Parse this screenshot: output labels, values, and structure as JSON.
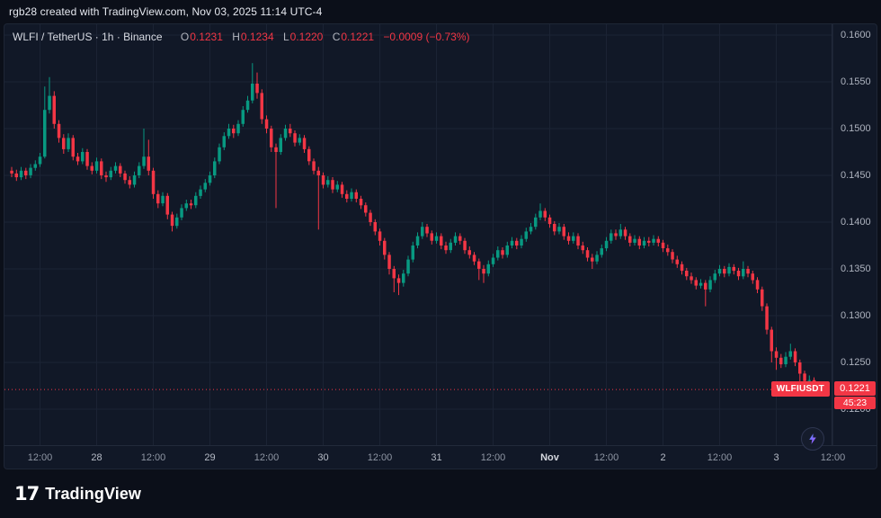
{
  "attribution": {
    "text": "rgb28 created with TradingView.com, Nov 03, 2025 11:14 UTC-4"
  },
  "legend": {
    "symbol_title": "WLFI / TetherUS · 1h · Binance",
    "ohlc": {
      "o_label": "O",
      "o_value": "0.1231",
      "h_label": "H",
      "h_value": "0.1234",
      "l_label": "L",
      "l_value": "0.1220",
      "c_label": "C",
      "c_value": "0.1221",
      "change": "−0.0009 (−0.73%)"
    }
  },
  "price_line": {
    "symbol_flag": "WLFIUSDT",
    "price_label": "0.1221",
    "countdown": "45:23"
  },
  "footer": {
    "brand": "TradingView",
    "logo_glyph": "17"
  },
  "icons": {
    "boost": "lightning-bolt"
  },
  "colors": {
    "up": "#089981",
    "down": "#f23645",
    "grid": "#1b2334",
    "axis_text": "#aeb3bf",
    "panel_bg": "#111827"
  },
  "chart_data": {
    "type": "candlestick",
    "title": "WLFI / TetherUS · 1h · Binance",
    "symbol": "WLFIUSDT",
    "exchange": "Binance",
    "interval": "1h",
    "last_price": 0.1221,
    "change": -0.0009,
    "change_pct": -0.73,
    "price_axis": {
      "min": 0.11615,
      "max": 0.16115,
      "ticks": [
        {
          "label": "0.1600",
          "value": 0.16
        },
        {
          "label": "0.1550",
          "value": 0.155
        },
        {
          "label": "0.1500",
          "value": 0.15
        },
        {
          "label": "0.1450",
          "value": 0.145
        },
        {
          "label": "0.1400",
          "value": 0.14
        },
        {
          "label": "0.1350",
          "value": 0.135
        },
        {
          "label": "0.1300",
          "value": 0.13
        },
        {
          "label": "0.1250",
          "value": 0.125
        },
        {
          "label": "0.1200",
          "value": 0.12
        }
      ]
    },
    "time_axis": {
      "ticks": [
        {
          "label": "12:00",
          "index": 6
        },
        {
          "label": "28",
          "index": 18,
          "kind": "day"
        },
        {
          "label": "12:00",
          "index": 30
        },
        {
          "label": "29",
          "index": 42,
          "kind": "day"
        },
        {
          "label": "12:00",
          "index": 54
        },
        {
          "label": "30",
          "index": 66,
          "kind": "day"
        },
        {
          "label": "12:00",
          "index": 78
        },
        {
          "label": "31",
          "index": 90,
          "kind": "day"
        },
        {
          "label": "12:00",
          "index": 102
        },
        {
          "label": "Nov",
          "index": 114,
          "kind": "em"
        },
        {
          "label": "12:00",
          "index": 126
        },
        {
          "label": "2",
          "index": 138,
          "kind": "day"
        },
        {
          "label": "12:00",
          "index": 150
        },
        {
          "label": "3",
          "index": 162,
          "kind": "day"
        },
        {
          "label": "12:00",
          "index": 174
        }
      ]
    },
    "candles": [
      [
        0.1455,
        0.1459,
        0.1448,
        0.1452
      ],
      [
        0.1452,
        0.1456,
        0.1444,
        0.1448
      ],
      [
        0.1448,
        0.1459,
        0.1445,
        0.1455
      ],
      [
        0.1455,
        0.1458,
        0.1446,
        0.145
      ],
      [
        0.145,
        0.1462,
        0.1447,
        0.1458
      ],
      [
        0.1458,
        0.1466,
        0.1455,
        0.1462
      ],
      [
        0.1462,
        0.1474,
        0.1459,
        0.147
      ],
      [
        0.147,
        0.1545,
        0.1468,
        0.152
      ],
      [
        0.152,
        0.1555,
        0.1516,
        0.1535
      ],
      [
        0.1535,
        0.154,
        0.15,
        0.1505
      ],
      [
        0.1505,
        0.1509,
        0.1485,
        0.149
      ],
      [
        0.149,
        0.1494,
        0.1473,
        0.1478
      ],
      [
        0.1478,
        0.1495,
        0.1475,
        0.149
      ],
      [
        0.149,
        0.1493,
        0.1466,
        0.147
      ],
      [
        0.147,
        0.1474,
        0.1461,
        0.1465
      ],
      [
        0.1465,
        0.1479,
        0.1462,
        0.1475
      ],
      [
        0.1475,
        0.1478,
        0.1456,
        0.146
      ],
      [
        0.146,
        0.1464,
        0.1451,
        0.1455
      ],
      [
        0.1455,
        0.1469,
        0.1452,
        0.1465
      ],
      [
        0.1465,
        0.1468,
        0.1446,
        0.145
      ],
      [
        0.145,
        0.1454,
        0.1443,
        0.1448
      ],
      [
        0.1448,
        0.1459,
        0.1445,
        0.1455
      ],
      [
        0.1455,
        0.1464,
        0.1452,
        0.146
      ],
      [
        0.146,
        0.1463,
        0.1448,
        0.1452
      ],
      [
        0.1452,
        0.1455,
        0.1441,
        0.1445
      ],
      [
        0.1445,
        0.1449,
        0.1436,
        0.144
      ],
      [
        0.144,
        0.1454,
        0.1437,
        0.145
      ],
      [
        0.145,
        0.1464,
        0.1447,
        0.146
      ],
      [
        0.146,
        0.15,
        0.1457,
        0.147
      ],
      [
        0.147,
        0.1488,
        0.145,
        0.1455
      ],
      [
        0.1455,
        0.1458,
        0.1425,
        0.143
      ],
      [
        0.143,
        0.1434,
        0.1415,
        0.142
      ],
      [
        0.142,
        0.1432,
        0.1417,
        0.1428
      ],
      [
        0.1428,
        0.1431,
        0.1403,
        0.1408
      ],
      [
        0.1408,
        0.1411,
        0.139,
        0.1396
      ],
      [
        0.1396,
        0.1409,
        0.1393,
        0.1405
      ],
      [
        0.1405,
        0.1419,
        0.1402,
        0.1415
      ],
      [
        0.1415,
        0.1424,
        0.1412,
        0.142
      ],
      [
        0.142,
        0.1424,
        0.1414,
        0.1418
      ],
      [
        0.1418,
        0.1432,
        0.1415,
        0.1428
      ],
      [
        0.1428,
        0.1439,
        0.1425,
        0.1435
      ],
      [
        0.1435,
        0.1446,
        0.1432,
        0.1442
      ],
      [
        0.1442,
        0.1454,
        0.1439,
        0.145
      ],
      [
        0.145,
        0.1469,
        0.1447,
        0.1465
      ],
      [
        0.1465,
        0.1484,
        0.1462,
        0.148
      ],
      [
        0.148,
        0.1496,
        0.1477,
        0.1492
      ],
      [
        0.1492,
        0.1505,
        0.1489,
        0.15
      ],
      [
        0.15,
        0.1504,
        0.149,
        0.1495
      ],
      [
        0.1495,
        0.1509,
        0.1492,
        0.1505
      ],
      [
        0.1505,
        0.1524,
        0.1502,
        0.152
      ],
      [
        0.152,
        0.1535,
        0.1517,
        0.153
      ],
      [
        0.153,
        0.157,
        0.1527,
        0.1548
      ],
      [
        0.1548,
        0.156,
        0.1532,
        0.1538
      ],
      [
        0.1538,
        0.1542,
        0.1505,
        0.151
      ],
      [
        0.151,
        0.1514,
        0.1495,
        0.15
      ],
      [
        0.15,
        0.1503,
        0.1475,
        0.148
      ],
      [
        0.148,
        0.1484,
        0.1415,
        0.1475
      ],
      [
        0.1475,
        0.1494,
        0.1472,
        0.149
      ],
      [
        0.149,
        0.1504,
        0.1487,
        0.15
      ],
      [
        0.15,
        0.1505,
        0.1491,
        0.1495
      ],
      [
        0.1495,
        0.1498,
        0.1481,
        0.1485
      ],
      [
        0.1485,
        0.1494,
        0.1482,
        0.149
      ],
      [
        0.149,
        0.1493,
        0.1474,
        0.1478
      ],
      [
        0.1478,
        0.1481,
        0.1461,
        0.1465
      ],
      [
        0.1465,
        0.1468,
        0.1451,
        0.1455
      ],
      [
        0.1455,
        0.1459,
        0.1392,
        0.145
      ],
      [
        0.145,
        0.1453,
        0.1436,
        0.144
      ],
      [
        0.144,
        0.1449,
        0.1437,
        0.1445
      ],
      [
        0.1445,
        0.1448,
        0.1431,
        0.1435
      ],
      [
        0.1435,
        0.1444,
        0.1432,
        0.144
      ],
      [
        0.144,
        0.1443,
        0.1426,
        0.143
      ],
      [
        0.143,
        0.1434,
        0.1421,
        0.1425
      ],
      [
        0.1425,
        0.1436,
        0.1422,
        0.1432
      ],
      [
        0.1432,
        0.1435,
        0.1421,
        0.1425
      ],
      [
        0.1425,
        0.1428,
        0.1414,
        0.1418
      ],
      [
        0.1418,
        0.1421,
        0.1406,
        0.141
      ],
      [
        0.141,
        0.1413,
        0.1396,
        0.14
      ],
      [
        0.14,
        0.1403,
        0.1386,
        0.139
      ],
      [
        0.139,
        0.1393,
        0.1375,
        0.138
      ],
      [
        0.138,
        0.1383,
        0.136,
        0.1365
      ],
      [
        0.1365,
        0.1368,
        0.1344,
        0.135
      ],
      [
        0.135,
        0.1353,
        0.1325,
        0.134
      ],
      [
        0.134,
        0.1344,
        0.1322,
        0.1335
      ],
      [
        0.1335,
        0.1349,
        0.1331,
        0.1345
      ],
      [
        0.1345,
        0.1364,
        0.1342,
        0.136
      ],
      [
        0.136,
        0.1379,
        0.1357,
        0.1375
      ],
      [
        0.1375,
        0.1389,
        0.1372,
        0.1385
      ],
      [
        0.1385,
        0.14,
        0.1382,
        0.1395
      ],
      [
        0.1395,
        0.1398,
        0.1384,
        0.1388
      ],
      [
        0.1388,
        0.1391,
        0.1376,
        0.138
      ],
      [
        0.138,
        0.1389,
        0.1377,
        0.1385
      ],
      [
        0.1385,
        0.1388,
        0.1371,
        0.1375
      ],
      [
        0.1375,
        0.1379,
        0.1366,
        0.137
      ],
      [
        0.137,
        0.1382,
        0.1367,
        0.1378
      ],
      [
        0.1378,
        0.1389,
        0.1375,
        0.1385
      ],
      [
        0.1385,
        0.1388,
        0.1376,
        0.138
      ],
      [
        0.138,
        0.1383,
        0.1366,
        0.137
      ],
      [
        0.137,
        0.1374,
        0.1361,
        0.1365
      ],
      [
        0.1365,
        0.1368,
        0.1354,
        0.1358
      ],
      [
        0.1358,
        0.1361,
        0.1338,
        0.135
      ],
      [
        0.135,
        0.1354,
        0.1335,
        0.1345
      ],
      [
        0.1345,
        0.1359,
        0.1342,
        0.1355
      ],
      [
        0.1355,
        0.1366,
        0.1352,
        0.1362
      ],
      [
        0.1362,
        0.1374,
        0.1359,
        0.137
      ],
      [
        0.137,
        0.1373,
        0.1361,
        0.1365
      ],
      [
        0.1365,
        0.1379,
        0.1362,
        0.1375
      ],
      [
        0.1375,
        0.1384,
        0.1372,
        0.138
      ],
      [
        0.138,
        0.1383,
        0.1371,
        0.1375
      ],
      [
        0.1375,
        0.1386,
        0.1372,
        0.1382
      ],
      [
        0.1382,
        0.1394,
        0.1379,
        0.139
      ],
      [
        0.139,
        0.1399,
        0.1387,
        0.1395
      ],
      [
        0.1395,
        0.1409,
        0.1392,
        0.1405
      ],
      [
        0.1405,
        0.142,
        0.1402,
        0.1412
      ],
      [
        0.1412,
        0.1415,
        0.1401,
        0.1405
      ],
      [
        0.1405,
        0.1408,
        0.1394,
        0.1398
      ],
      [
        0.1398,
        0.1401,
        0.1386,
        0.139
      ],
      [
        0.139,
        0.1399,
        0.1387,
        0.1395
      ],
      [
        0.1395,
        0.1398,
        0.1381,
        0.1385
      ],
      [
        0.1385,
        0.1389,
        0.1376,
        0.138
      ],
      [
        0.138,
        0.1389,
        0.1377,
        0.1385
      ],
      [
        0.1385,
        0.1388,
        0.1371,
        0.1375
      ],
      [
        0.1375,
        0.1379,
        0.1366,
        0.137
      ],
      [
        0.137,
        0.1373,
        0.1358,
        0.1362
      ],
      [
        0.1362,
        0.1366,
        0.135,
        0.1358
      ],
      [
        0.1358,
        0.1369,
        0.1355,
        0.1365
      ],
      [
        0.1365,
        0.1376,
        0.1362,
        0.1372
      ],
      [
        0.1372,
        0.1384,
        0.1369,
        0.138
      ],
      [
        0.138,
        0.1392,
        0.1377,
        0.1388
      ],
      [
        0.1388,
        0.1392,
        0.1381,
        0.1385
      ],
      [
        0.1385,
        0.1398,
        0.1382,
        0.1392
      ],
      [
        0.1392,
        0.1395,
        0.1381,
        0.1385
      ],
      [
        0.1385,
        0.1388,
        0.1374,
        0.1378
      ],
      [
        0.1378,
        0.1386,
        0.1375,
        0.1382
      ],
      [
        0.1382,
        0.1385,
        0.1371,
        0.1375
      ],
      [
        0.1375,
        0.1384,
        0.1372,
        0.138
      ],
      [
        0.138,
        0.1384,
        0.1374,
        0.1378
      ],
      [
        0.1378,
        0.1386,
        0.1375,
        0.1382
      ],
      [
        0.1382,
        0.1385,
        0.1374,
        0.1378
      ],
      [
        0.1378,
        0.1381,
        0.1368,
        0.1372
      ],
      [
        0.1372,
        0.1376,
        0.1364,
        0.1368
      ],
      [
        0.1368,
        0.1371,
        0.1356,
        0.136
      ],
      [
        0.136,
        0.1364,
        0.1351,
        0.1355
      ],
      [
        0.1355,
        0.1358,
        0.1344,
        0.1348
      ],
      [
        0.1348,
        0.1351,
        0.1338,
        0.1342
      ],
      [
        0.1342,
        0.1346,
        0.1334,
        0.1338
      ],
      [
        0.1338,
        0.1341,
        0.1328,
        0.1332
      ],
      [
        0.1332,
        0.1339,
        0.1329,
        0.1335
      ],
      [
        0.1335,
        0.1338,
        0.131,
        0.1328
      ],
      [
        0.1328,
        0.1342,
        0.1325,
        0.1338
      ],
      [
        0.1338,
        0.1349,
        0.1335,
        0.1345
      ],
      [
        0.1345,
        0.1354,
        0.1342,
        0.135
      ],
      [
        0.135,
        0.1353,
        0.1341,
        0.1345
      ],
      [
        0.1345,
        0.1356,
        0.1342,
        0.1352
      ],
      [
        0.1352,
        0.1355,
        0.1344,
        0.1348
      ],
      [
        0.1348,
        0.1351,
        0.1338,
        0.1342
      ],
      [
        0.1342,
        0.1358,
        0.1339,
        0.135
      ],
      [
        0.135,
        0.1353,
        0.1341,
        0.1345
      ],
      [
        0.1345,
        0.1348,
        0.1334,
        0.1338
      ],
      [
        0.1338,
        0.1341,
        0.1324,
        0.1328
      ],
      [
        0.1328,
        0.1331,
        0.1305,
        0.131
      ],
      [
        0.131,
        0.1313,
        0.128,
        0.1285
      ],
      [
        0.1285,
        0.1288,
        0.125,
        0.1262
      ],
      [
        0.1262,
        0.1266,
        0.1242,
        0.1255
      ],
      [
        0.1255,
        0.1259,
        0.1244,
        0.1248
      ],
      [
        0.1248,
        0.1261,
        0.1245,
        0.1256
      ],
      [
        0.1256,
        0.127,
        0.1253,
        0.1262
      ],
      [
        0.1262,
        0.1265,
        0.1246,
        0.125
      ],
      [
        0.125,
        0.1253,
        0.1222,
        0.1238
      ],
      [
        0.1238,
        0.1241,
        0.1216,
        0.123
      ],
      [
        0.123,
        0.1236,
        0.1226,
        0.1231
      ],
      [
        0.1231,
        0.1234,
        0.122,
        0.1221
      ]
    ]
  }
}
